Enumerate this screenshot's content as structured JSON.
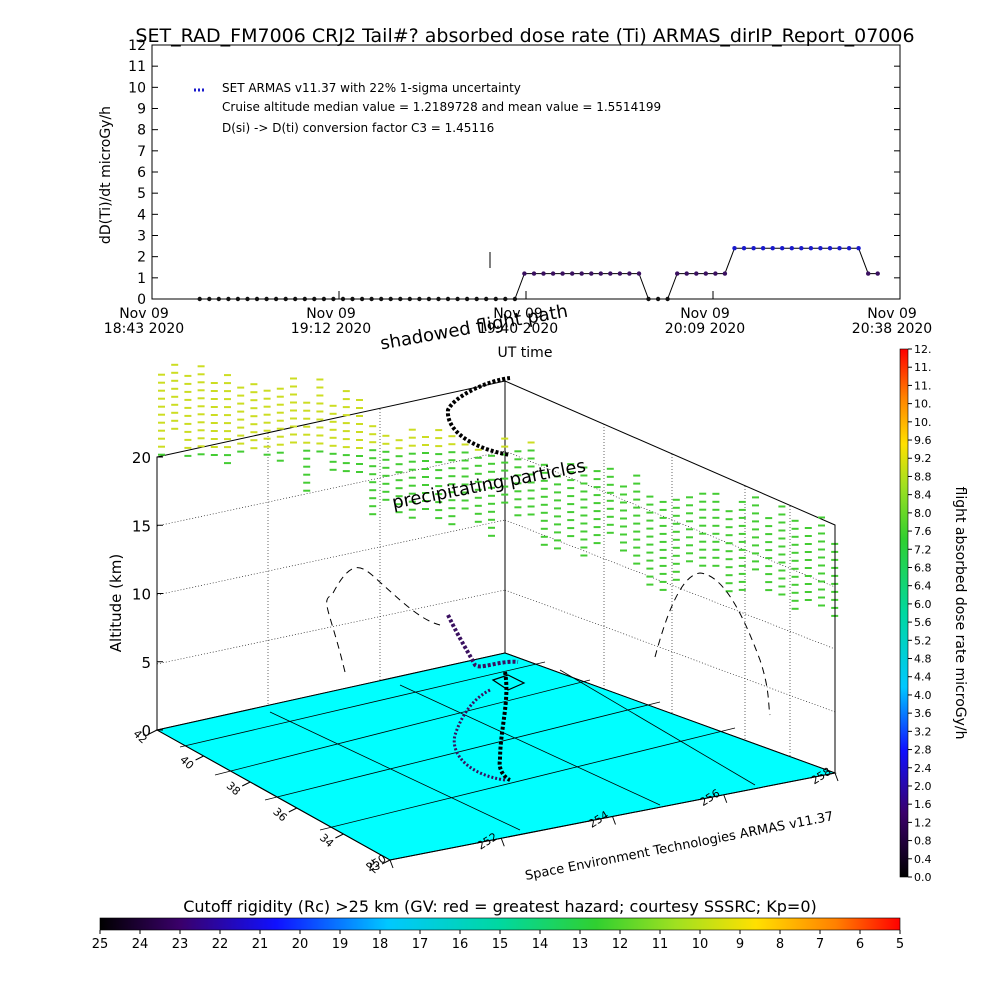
{
  "chart_data": [
    {
      "type": "scatter",
      "title": "SET_RAD_FM7006  CRJ2 Tail#? absorbed dose rate (Ti) ARMAS_dirIP_Report_07006",
      "ylabel": "dD(Ti)/dt microGy/h",
      "xlabel": "UT time",
      "ylim": [
        0,
        12
      ],
      "yticks": [
        "0",
        "1",
        "2",
        "3",
        "4",
        "5",
        "6",
        "7",
        "8",
        "9",
        "10",
        "11",
        "12"
      ],
      "xticks": [
        {
          "date": "Nov 09",
          "time": "18:43 2020"
        },
        {
          "date": "Nov 09",
          "time": "19:12 2020"
        },
        {
          "date": "Nov 09",
          "time": "19:40 2020"
        },
        {
          "date": "Nov 09",
          "time": "20:09 2020"
        },
        {
          "date": "Nov 09",
          "time": "20:38 2020"
        }
      ],
      "legend": {
        "series_label": "SET ARMAS v11.37 with 22% 1-sigma uncertainty",
        "line2": "Cruise altitude median value = 1.2189728 and mean value = 1.5514199",
        "line3": "D(si) -> D(ti) conversion factor C3 = 1.45116"
      },
      "series": [
        {
          "name": "SET ARMAS v11.37 with 22% 1-sigma uncertainty",
          "x_minutes_after_1843": [
            3,
            6,
            9,
            12,
            15,
            18,
            21,
            24,
            27,
            30,
            33,
            36,
            39,
            42,
            45,
            48,
            51,
            54,
            57,
            60,
            63,
            66,
            69,
            72,
            75,
            78,
            81,
            84,
            87,
            90,
            93,
            96,
            99,
            102,
            105,
            108,
            111,
            114,
            117,
            120,
            123,
            126,
            129,
            132,
            135,
            138,
            141,
            144,
            147,
            150,
            153,
            156,
            159,
            162,
            165,
            168,
            171,
            174,
            177,
            180,
            183,
            186,
            189,
            192,
            195,
            198,
            201,
            204,
            207,
            210,
            213,
            216
          ],
          "y": [
            0,
            0,
            0,
            0,
            0,
            0,
            0,
            0,
            0,
            0,
            0,
            0,
            0,
            0,
            0,
            0,
            0,
            0,
            0,
            0,
            0,
            0,
            0,
            0,
            0,
            0,
            0,
            0,
            0,
            0,
            0,
            0,
            0,
            0,
            1.2,
            1.2,
            1.2,
            1.2,
            1.2,
            1.2,
            1.2,
            1.2,
            1.2,
            1.2,
            1.2,
            1.2,
            1.2,
            0,
            0,
            0,
            1.2,
            1.2,
            1.2,
            1.2,
            1.2,
            1.2,
            2.4,
            2.4,
            2.4,
            2.4,
            2.4,
            2.4,
            2.4,
            2.4,
            2.4,
            2.4,
            2.4,
            2.4,
            2.4,
            2.4,
            1.2,
            1.2
          ]
        }
      ]
    },
    {
      "type": "scatter",
      "title": "",
      "zlabel": "Altitude (km)",
      "zticks": [
        "0",
        "5",
        "10",
        "15",
        "20"
      ],
      "zlim": [
        0,
        22
      ],
      "x_axis_ticks": [
        "250",
        "252",
        "254",
        "256",
        "258"
      ],
      "y_axis_ticks": [
        "32",
        "34",
        "36",
        "38",
        "40",
        "42"
      ],
      "annotations": [
        "shadowed flight path",
        "precipitating particles"
      ],
      "footer_credit": "Space Environment Technologies ARMAS v11.37",
      "colorbar": {
        "label": "flight absorbed dose rate microGy/h",
        "ticks": [
          "0.0",
          "0.4",
          "0.8",
          "1.2",
          "1.6",
          "2.0",
          "2.4",
          "2.8",
          "3.2",
          "3.6",
          "4.0",
          "4.4",
          "4.8",
          "5.2",
          "5.6",
          "6.0",
          "6.4",
          "6.8",
          "7.2",
          "7.6",
          "8.0",
          "8.4",
          "8.8",
          "9.2",
          "9.6",
          "10.",
          "10.",
          "11.",
          "11.",
          "12."
        ]
      },
      "surface_color": "#00ffff",
      "particle_colors": [
        "#ccdd22",
        "#44cc33"
      ]
    }
  ],
  "cutoff_bar": {
    "label": "Cutoff rigidity (Rc) >25 km (GV: red = greatest hazard; courtesy SSSRC; Kp=0)",
    "ticks": [
      "25",
      "24",
      "23",
      "22",
      "21",
      "20",
      "19",
      "18",
      "17",
      "16",
      "15",
      "14",
      "13",
      "12",
      "11",
      "10",
      "9",
      "8",
      "7",
      "6",
      "5"
    ]
  },
  "colors": {
    "series": "#1a1acc",
    "accent_dark": "#3a1060",
    "axis": "#000000"
  }
}
